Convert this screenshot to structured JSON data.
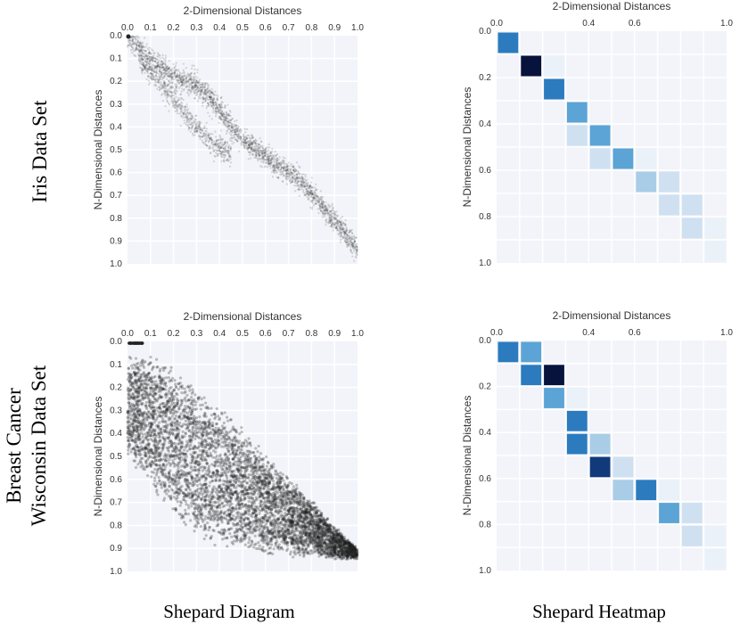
{
  "row_labels": {
    "iris": "Iris Data Set",
    "bc_line1": "Breast Cancer",
    "bc_line2": "Wisconsin Data Set"
  },
  "column_labels": {
    "shepard": "Shepard Diagram",
    "heatmap": "Shepard Heatmap"
  },
  "chart_data": [
    {
      "id": "iris-diagram",
      "type": "scatter",
      "title": "",
      "xlabel": "2-Dimensional Distances",
      "ylabel": "N-Dimensional Distances",
      "xlim": [
        0,
        1
      ],
      "ylim": [
        0,
        1
      ],
      "x_ticks": [
        "0.0",
        "0.1",
        "0.2",
        "0.3",
        "0.4",
        "0.5",
        "0.6",
        "0.7",
        "0.8",
        "0.9",
        "1.0"
      ],
      "y_ticks": [
        "0.0",
        "0.1",
        "0.2",
        "0.3",
        "0.4",
        "0.5",
        "0.6",
        "0.7",
        "0.8",
        "0.9",
        "1.0"
      ],
      "grid": true,
      "color": "#3a3a3a",
      "series": [
        {
          "x": [
            0.0,
            0.05,
            0.1,
            0.15,
            0.2,
            0.25,
            0.3,
            0.35,
            0.4,
            0.45,
            0.5,
            0.55,
            0.6,
            0.65,
            0.7,
            0.75,
            0.8,
            0.85,
            0.9,
            0.95,
            1.0
          ],
          "y": [
            0.0,
            0.05,
            0.1,
            0.14,
            0.18,
            0.2,
            0.22,
            0.26,
            0.32,
            0.4,
            0.46,
            0.49,
            0.53,
            0.57,
            0.6,
            0.64,
            0.69,
            0.75,
            0.81,
            0.87,
            0.93
          ]
        },
        {
          "x": [
            0.05,
            0.1,
            0.15,
            0.2,
            0.25,
            0.3,
            0.35,
            0.4,
            0.45
          ],
          "y": [
            0.1,
            0.16,
            0.22,
            0.28,
            0.34,
            0.4,
            0.45,
            0.49,
            0.52
          ]
        }
      ]
    },
    {
      "id": "iris-heatmap",
      "type": "heatmap",
      "title": "",
      "xlabel": "2-Dimensional Distances",
      "ylabel": "N-Dimensional Distances",
      "x_ticks": [
        "0.0",
        "0.4",
        "0.6",
        "1.0"
      ],
      "y_ticks": [
        "0.0",
        "0.2",
        "0.4",
        "0.6",
        "0.8",
        "1.0"
      ],
      "grid": true,
      "bins": 10,
      "colors": [
        "#eaf1f8",
        "#cfe0f1",
        "#a9cde6",
        "#5ba4d5",
        "#2b7bbe",
        "#123a7a",
        "#07123d"
      ],
      "cells": [
        {
          "row": 0,
          "col": 0,
          "level": 4
        },
        {
          "row": 1,
          "col": 1,
          "level": 6
        },
        {
          "row": 1,
          "col": 2,
          "level": 0
        },
        {
          "row": 2,
          "col": 2,
          "level": 4
        },
        {
          "row": 3,
          "col": 3,
          "level": 3
        },
        {
          "row": 4,
          "col": 3,
          "level": 1
        },
        {
          "row": 4,
          "col": 4,
          "level": 3
        },
        {
          "row": 5,
          "col": 4,
          "level": 1
        },
        {
          "row": 5,
          "col": 5,
          "level": 3
        },
        {
          "row": 5,
          "col": 6,
          "level": 0
        },
        {
          "row": 6,
          "col": 6,
          "level": 2
        },
        {
          "row": 6,
          "col": 7,
          "level": 1
        },
        {
          "row": 7,
          "col": 7,
          "level": 1
        },
        {
          "row": 7,
          "col": 8,
          "level": 1
        },
        {
          "row": 8,
          "col": 8,
          "level": 1
        },
        {
          "row": 8,
          "col": 9,
          "level": 0
        },
        {
          "row": 9,
          "col": 9,
          "level": 0
        }
      ]
    },
    {
      "id": "bc-diagram",
      "type": "scatter",
      "title": "",
      "xlabel": "2-Dimensional Distances",
      "ylabel": "N-Dimensional Distances",
      "xlim": [
        0,
        1
      ],
      "ylim": [
        0,
        1
      ],
      "x_ticks": [
        "0.0",
        "0.1",
        "0.2",
        "0.3",
        "0.4",
        "0.5",
        "0.6",
        "0.7",
        "0.8",
        "0.9",
        "1.0"
      ],
      "y_ticks": [
        "0.0",
        "0.1",
        "0.2",
        "0.3",
        "0.4",
        "0.5",
        "0.6",
        "0.7",
        "0.8",
        "0.9",
        "1.0"
      ],
      "grid": true,
      "color": "#222222",
      "series": [
        {
          "x": [
            0.0,
            0.1,
            0.2,
            0.3,
            0.4,
            0.5,
            0.6,
            0.7,
            0.8,
            0.9,
            1.0
          ],
          "y_low": [
            0.05,
            0.05,
            0.1,
            0.18,
            0.28,
            0.37,
            0.48,
            0.58,
            0.68,
            0.8,
            0.9
          ],
          "y_high": [
            0.5,
            0.65,
            0.75,
            0.85,
            0.9,
            0.92,
            0.93,
            0.94,
            0.94,
            0.95,
            0.95
          ]
        }
      ]
    },
    {
      "id": "bc-heatmap",
      "type": "heatmap",
      "title": "",
      "xlabel": "2-Dimensional Distances",
      "ylabel": "N-Dimensional Distances",
      "x_ticks": [
        "0.0",
        "0.4",
        "0.6",
        "1.0"
      ],
      "y_ticks": [
        "0.0",
        "0.2",
        "0.4",
        "0.6",
        "0.8",
        "1.0"
      ],
      "grid": true,
      "bins": 10,
      "colors": [
        "#eaf1f8",
        "#cfe0f1",
        "#a9cde6",
        "#5ba4d5",
        "#2b7bbe",
        "#123a7a",
        "#07123d"
      ],
      "cells": [
        {
          "row": 0,
          "col": 0,
          "level": 4
        },
        {
          "row": 0,
          "col": 1,
          "level": 3
        },
        {
          "row": 1,
          "col": 1,
          "level": 4
        },
        {
          "row": 1,
          "col": 2,
          "level": 6
        },
        {
          "row": 2,
          "col": 2,
          "level": 3
        },
        {
          "row": 2,
          "col": 3,
          "level": 0
        },
        {
          "row": 3,
          "col": 3,
          "level": 4
        },
        {
          "row": 4,
          "col": 3,
          "level": 4
        },
        {
          "row": 4,
          "col": 4,
          "level": 2
        },
        {
          "row": 5,
          "col": 4,
          "level": 5
        },
        {
          "row": 5,
          "col": 5,
          "level": 1
        },
        {
          "row": 6,
          "col": 5,
          "level": 2
        },
        {
          "row": 6,
          "col": 6,
          "level": 4
        },
        {
          "row": 6,
          "col": 7,
          "level": 0
        },
        {
          "row": 7,
          "col": 7,
          "level": 3
        },
        {
          "row": 7,
          "col": 8,
          "level": 1
        },
        {
          "row": 8,
          "col": 8,
          "level": 1
        },
        {
          "row": 8,
          "col": 9,
          "level": 0
        },
        {
          "row": 9,
          "col": 9,
          "level": 0
        }
      ]
    }
  ]
}
